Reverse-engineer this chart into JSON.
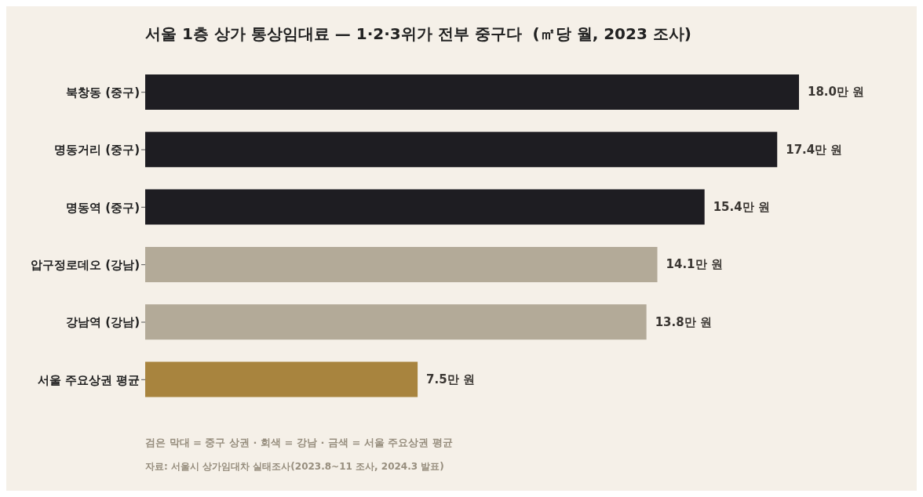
{
  "chart_data": {
    "type": "bar",
    "orientation": "horizontal",
    "title": "서울 1층 상가 통상임대료 — 1·2·3위가 전부 중구다  (㎡당 월, 2023 조사)",
    "categories": [
      "북창동 (중구)",
      "명동거리 (중구)",
      "명동역 (중구)",
      "압구정로데오 (강남)",
      "강남역 (강남)",
      "서울 주요상권 평균"
    ],
    "values": [
      18.0,
      17.4,
      15.4,
      14.1,
      13.8,
      7.5
    ],
    "colors": [
      "#1e1d22",
      "#1e1d22",
      "#1e1d22",
      "#b3aa98",
      "#b3aa98",
      "#a8843e"
    ],
    "value_labels": [
      "18.0만 원",
      "17.4만 원",
      "15.4만 원",
      "14.1만 원",
      "13.8만 원",
      "7.5만 원"
    ],
    "annotations": [
      "검은 막대 = 중구 상권 · 회색 = 강남 · 금색 = 서울 주요상권 평균",
      "자료: 서울시 상가임대차 실태조사(2023.8~11 조사, 2024.3 발표)"
    ]
  }
}
